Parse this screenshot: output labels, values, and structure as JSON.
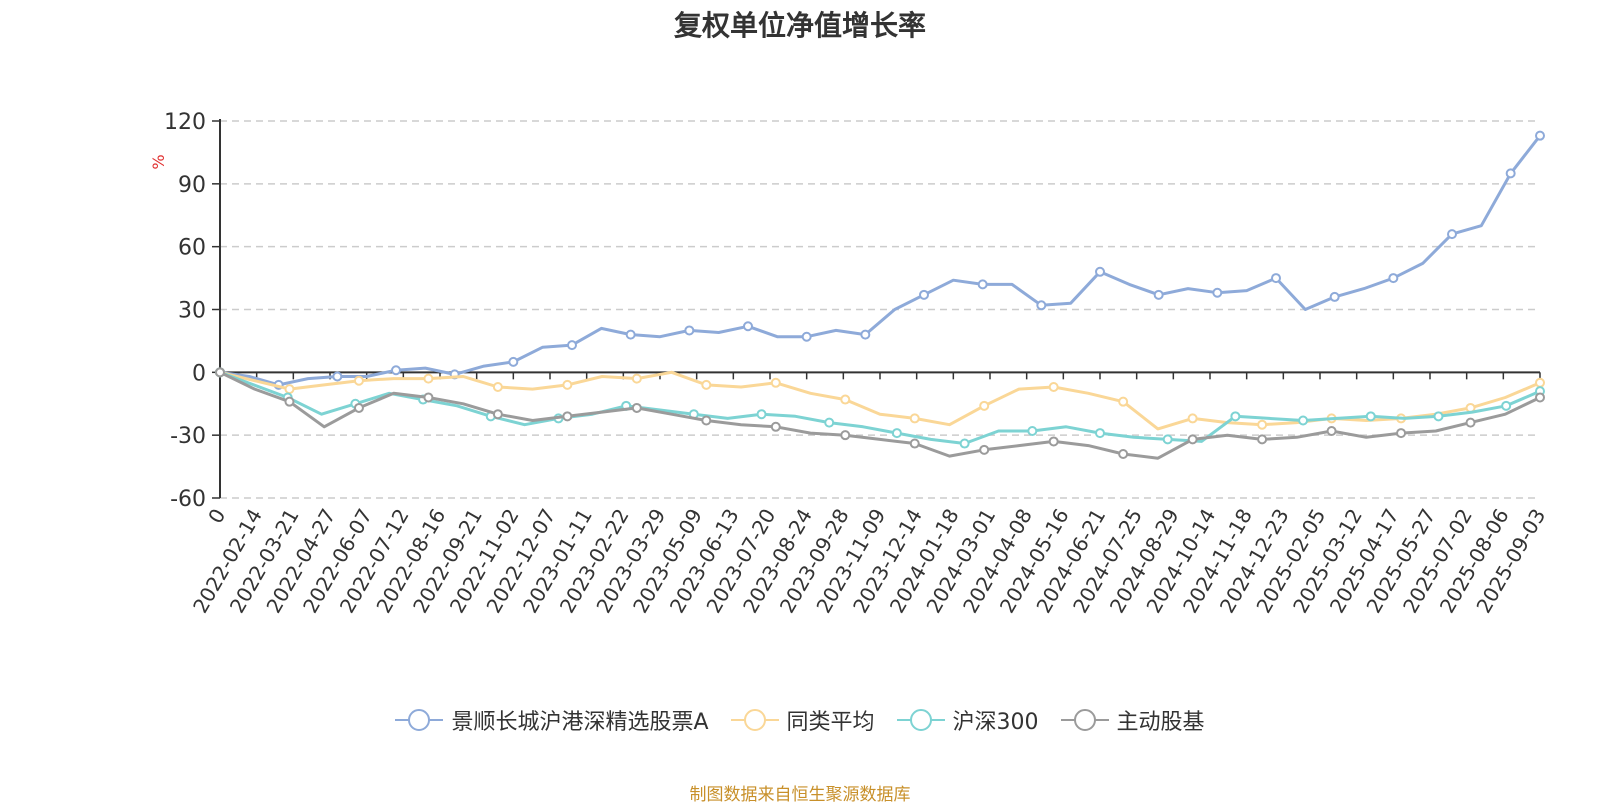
{
  "chart_data": {
    "type": "line",
    "title": "复权单位净值增长率",
    "ylabel": "%",
    "ylim": [
      -60,
      120
    ],
    "yticks": [
      "120",
      "90",
      "60",
      "30",
      "0",
      "-30",
      "-60"
    ],
    "x_tick_labels": [
      "0",
      "2022-02-14",
      "2022-03-21",
      "2022-04-27",
      "2022-06-07",
      "2022-07-12",
      "2022-08-16",
      "2022-09-21",
      "2022-11-02",
      "2022-12-07",
      "2023-01-11",
      "2023-02-22",
      "2023-03-29",
      "2023-05-09",
      "2023-06-13",
      "2023-07-20",
      "2023-08-24",
      "2023-09-28",
      "2023-11-09",
      "2023-12-14",
      "2024-01-18",
      "2024-03-01",
      "2024-04-08",
      "2024-05-16",
      "2024-06-21",
      "2024-07-25",
      "2024-08-29",
      "2024-10-14",
      "2024-11-18",
      "2024-12-23",
      "2025-02-05",
      "2025-03-12",
      "2025-04-17",
      "2025-05-27",
      "2025-07-02",
      "2025-08-06",
      "2025-09-03"
    ],
    "grid": true,
    "legend_position": "bottom",
    "series": [
      {
        "name": "景顺长城沪港深精选股票A",
        "color": "#8eaad9",
        "values": [
          0,
          -2,
          -6,
          -3,
          -2,
          -2,
          1,
          2,
          -1,
          3,
          5,
          12,
          13,
          21,
          18,
          17,
          20,
          19,
          22,
          17,
          17,
          20,
          18,
          30,
          37,
          44,
          42,
          42,
          32,
          33,
          48,
          42,
          37,
          40,
          38,
          39,
          45,
          30,
          36,
          40,
          45,
          52,
          66,
          70,
          95,
          113
        ]
      },
      {
        "name": "同类平均",
        "color": "#fad797",
        "values": [
          0,
          -4,
          -8,
          -6,
          -4,
          -3,
          -3,
          -2,
          -7,
          -8,
          -6,
          -2,
          -3,
          0,
          -6,
          -7,
          -5,
          -10,
          -13,
          -20,
          -22,
          -25,
          -16,
          -8,
          -7,
          -10,
          -14,
          -27,
          -22,
          -24,
          -25,
          -24,
          -22,
          -23,
          -22,
          -20,
          -17,
          -12,
          -5
        ]
      },
      {
        "name": "沪深300",
        "color": "#7dd3d3",
        "values": [
          0,
          -6,
          -12,
          -20,
          -15,
          -10,
          -13,
          -16,
          -21,
          -25,
          -22,
          -20,
          -16,
          -18,
          -20,
          -22,
          -20,
          -21,
          -24,
          -26,
          -29,
          -32,
          -34,
          -28,
          -28,
          -26,
          -29,
          -31,
          -32,
          -33,
          -21,
          -22,
          -23,
          -22,
          -21,
          -22,
          -21,
          -19,
          -16,
          -9
        ]
      },
      {
        "name": "主动股基",
        "color": "#9b9b9b",
        "values": [
          0,
          -8,
          -14,
          -26,
          -17,
          -10,
          -12,
          -15,
          -20,
          -23,
          -21,
          -19,
          -17,
          -20,
          -23,
          -25,
          -26,
          -29,
          -30,
          -32,
          -34,
          -40,
          -37,
          -35,
          -33,
          -35,
          -39,
          -41,
          -32,
          -30,
          -32,
          -31,
          -28,
          -31,
          -29,
          -28,
          -24,
          -20,
          -12
        ]
      }
    ]
  },
  "source_text": "制图数据来自恒生聚源数据库"
}
